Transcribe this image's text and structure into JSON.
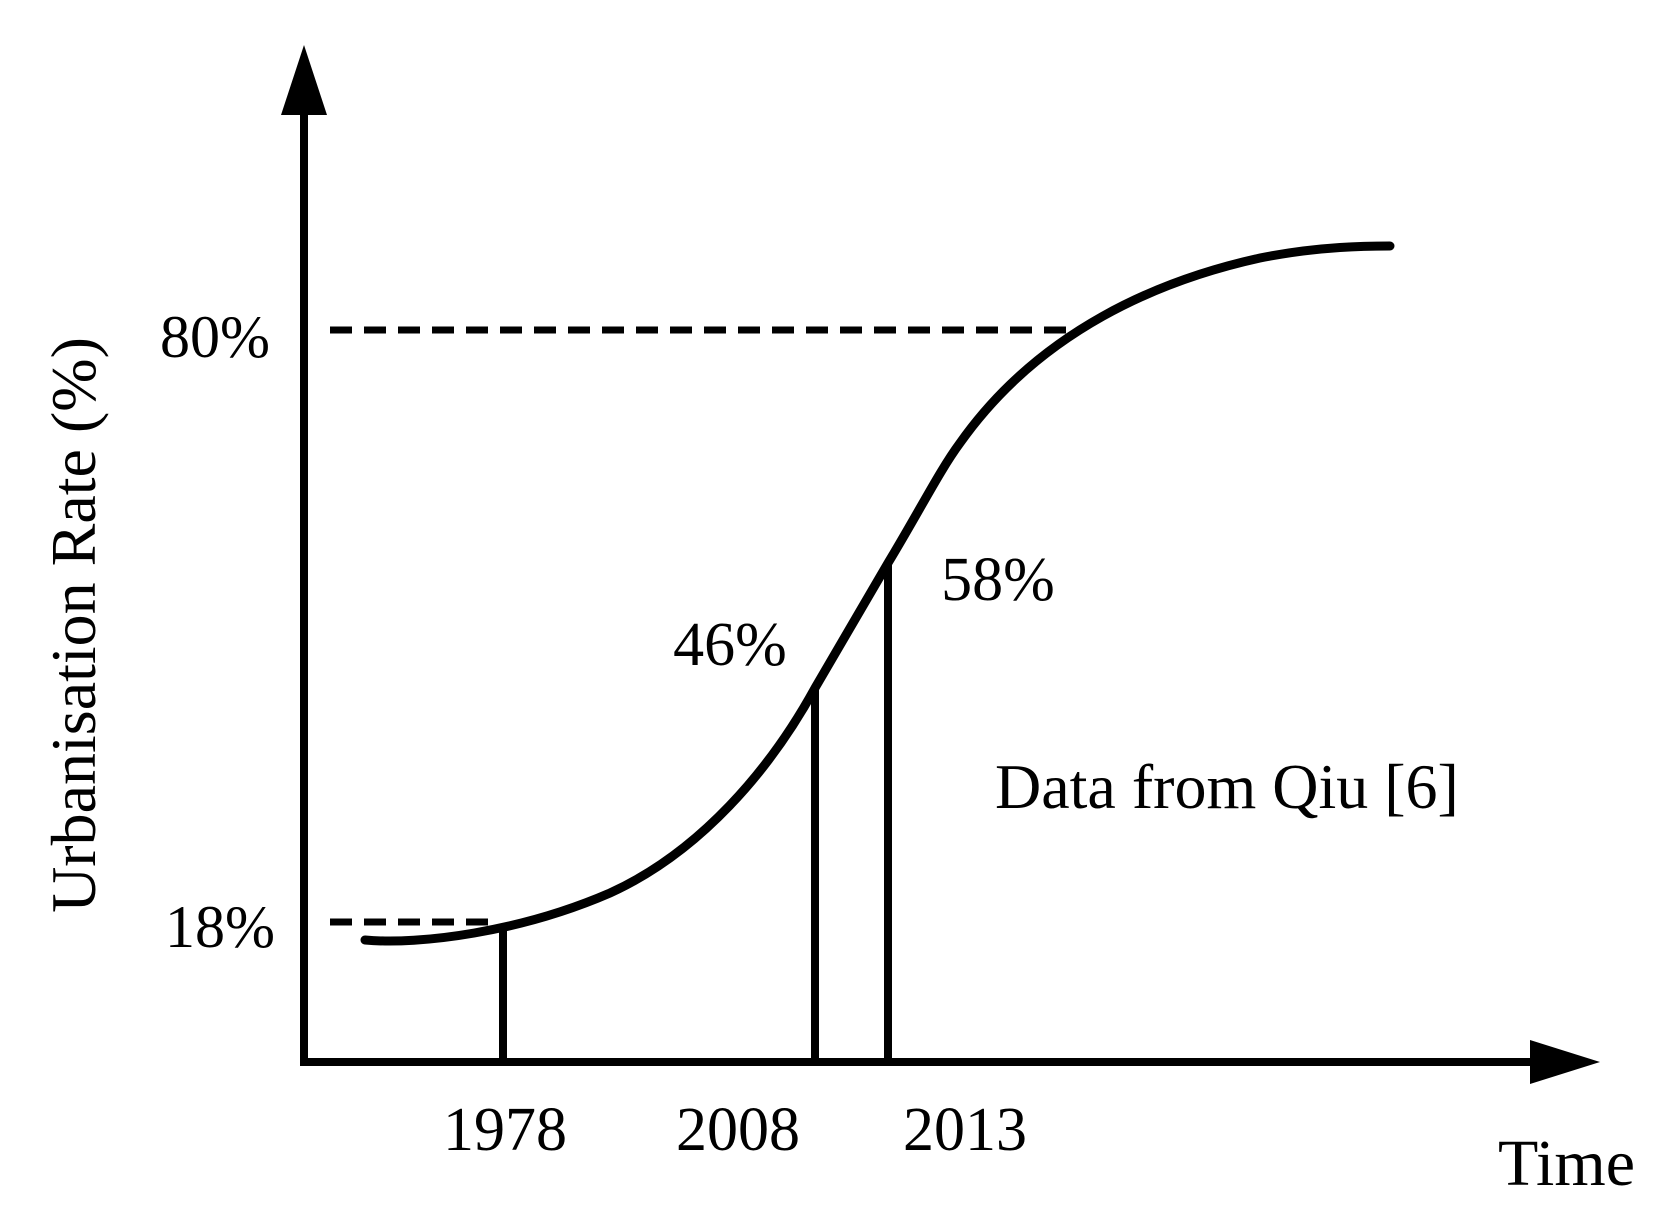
{
  "chart_data": {
    "type": "line",
    "ylabel": "Urbanisation Rate (%)",
    "xlabel": "Time",
    "annotation": "Data from Qiu [6]",
    "y_ticks": [
      "18%",
      "80%"
    ],
    "x_ticks": [
      "1978",
      "2008",
      "2013"
    ],
    "marked_points": [
      {
        "x": "1978",
        "y": 18,
        "label": ""
      },
      {
        "x": "2008",
        "y": 46,
        "label": "46%"
      },
      {
        "x": "2013",
        "y": 58,
        "label": "58%"
      }
    ],
    "reference_levels": [
      18,
      80
    ],
    "series": [
      {
        "values": [
          16,
          18,
          46,
          58,
          80,
          88
        ]
      }
    ],
    "curve_shape": "s-curve (logistic)",
    "grid": false,
    "axes": "arrowed, no numeric scale"
  }
}
